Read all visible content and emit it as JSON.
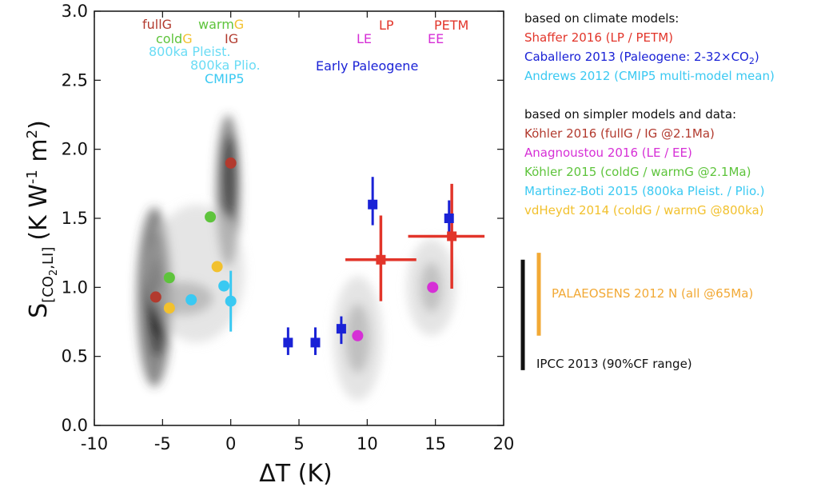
{
  "chart_data": {
    "type": "scatter",
    "xlabel": "ΔT (K)",
    "ylabel": {
      "base": "S",
      "sub_before": "[CO",
      "sub_num": "2",
      "sub_after": ",LI]",
      "units_open": "(K W",
      "exp1": "-1",
      "units_mid": " m",
      "exp2": "2",
      "units_close": ")"
    },
    "xlim": [
      -10,
      20
    ],
    "ylim": [
      0.0,
      3.0
    ],
    "xticks": [
      "-10",
      "-5",
      "0",
      "5",
      "10",
      "15",
      "20"
    ],
    "yticks": [
      "0.0",
      "0.5",
      "1.0",
      "1.5",
      "2.0",
      "2.5",
      "3.0"
    ],
    "grid": false,
    "colors": {
      "red": "#e2352a",
      "blue": "#1a22d6",
      "cyan": "#3ac9f2",
      "brown": "#b23a2e",
      "magenta": "#d62fd6",
      "green": "#5ec43c",
      "yellow": "#f2c12e",
      "orange": "#f2a935",
      "black": "#111111"
    },
    "density_clusters": [
      {
        "region": "glacial",
        "levels": [
          [
            -5.6,
            0.93,
            1.3,
            0.65
          ],
          [
            -5.4,
            0.95,
            0.7,
            0.45
          ],
          [
            -5.5,
            0.93,
            0.45,
            0.28
          ],
          [
            -3.5,
            0.92,
            2.2,
            0.12
          ],
          [
            -0.2,
            1.7,
            0.9,
            0.55
          ],
          [
            -0.1,
            1.8,
            0.5,
            0.3
          ],
          [
            -2.5,
            1.1,
            3.5,
            0.5
          ]
        ]
      },
      {
        "region": "paleogene",
        "levels": [
          [
            9.3,
            0.63,
            1.8,
            0.45
          ],
          [
            9.3,
            0.63,
            0.9,
            0.25
          ],
          [
            14.7,
            1.0,
            1.8,
            0.35
          ],
          [
            14.7,
            1.0,
            0.8,
            0.18
          ]
        ]
      }
    ],
    "series": [
      {
        "name": "Shaffer 2016 (LP / PETM)",
        "color": "red",
        "points": [
          {
            "x": 11.0,
            "y": 1.2,
            "xerr": [
              8.4,
              13.6
            ],
            "yerr": [
              0.9,
              1.52
            ]
          },
          {
            "x": 16.2,
            "y": 1.37,
            "xerr": [
              13.0,
              18.6
            ],
            "yerr": [
              0.99,
              1.75
            ]
          }
        ]
      },
      {
        "name": "Caballero 2013 (Paleogene: 2-32×CO2)",
        "color": "blue",
        "points": [
          {
            "x": 4.2,
            "y": 0.6,
            "yerr": [
              0.51,
              0.71
            ]
          },
          {
            "x": 6.2,
            "y": 0.6,
            "yerr": [
              0.51,
              0.71
            ]
          },
          {
            "x": 8.1,
            "y": 0.7,
            "yerr": [
              0.59,
              0.79
            ]
          },
          {
            "x": 10.4,
            "y": 1.6,
            "yerr": [
              1.45,
              1.8
            ]
          },
          {
            "x": 16.0,
            "y": 1.5,
            "yerr": [
              1.39,
              1.63
            ]
          }
        ]
      },
      {
        "name": "Andrews 2012 (CMIP5 multi-model mean)",
        "color": "cyan",
        "points": [
          {
            "x": 0.0,
            "y": 0.9,
            "yerr": [
              0.68,
              1.12
            ]
          }
        ]
      },
      {
        "name": "Köhler 2016 (fullG / IG @2.1Ma)",
        "color": "brown",
        "points": [
          {
            "x": -5.5,
            "y": 0.93
          },
          {
            "x": 0.0,
            "y": 1.9
          }
        ]
      },
      {
        "name": "Anagnoustou 2016 (LE / EE)",
        "color": "magenta",
        "points": [
          {
            "x": 9.3,
            "y": 0.65
          },
          {
            "x": 14.8,
            "y": 1.0
          }
        ]
      },
      {
        "name": "Köhler 2015 (coldG / warmG @2.1Ma)",
        "color": "green",
        "points": [
          {
            "x": -4.5,
            "y": 1.07
          },
          {
            "x": -1.5,
            "y": 1.51
          }
        ]
      },
      {
        "name": "Martinez-Boti 2015 (800ka Pleist. / Plio.)",
        "color": "cyan",
        "points": [
          {
            "x": -2.9,
            "y": 0.91
          },
          {
            "x": -0.5,
            "y": 1.01
          }
        ]
      },
      {
        "name": "vdHeydt 2014 (coldG / warmG @800ka)",
        "color": "yellow",
        "points": [
          {
            "x": -4.5,
            "y": 0.85
          },
          {
            "x": -1.0,
            "y": 1.15
          }
        ]
      }
    ],
    "annotations": {
      "fullG": "fullG",
      "warm": "warm",
      "G1": "G",
      "cold": "cold",
      "G2": "G",
      "IG": "IG",
      "pleist": "800ka Pleist.",
      "plio": "800ka Plio.",
      "cmip5": "CMIP5",
      "early_paleogene": "Early Paleogene",
      "LP": "LP",
      "LE": "LE",
      "PETM": "PETM",
      "EE": "EE"
    },
    "legend": {
      "heading1": "based on climate models:",
      "heading2": "based on simpler models and data:",
      "entries": [
        {
          "label": "Shaffer 2016 (LP / PETM)",
          "color": "red"
        },
        {
          "label_pre": "Caballero 2013 (Paleogene: 2-32×CO",
          "label_sub": "2",
          "label_post": ")",
          "color": "blue"
        },
        {
          "label": "Andrews 2012 (CMIP5 multi-model mean)",
          "color": "cyan"
        },
        {
          "label": "Köhler 2016 (fullG / IG @2.1Ma)",
          "color": "brown"
        },
        {
          "label": "Anagnoustou 2016 (LE / EE)",
          "color": "magenta"
        },
        {
          "label": "Köhler 2015 (coldG / warmG @2.1Ma)",
          "color": "green"
        },
        {
          "label": "Martinez-Boti 2015 (800ka Pleist. / Plio.)",
          "color": "cyan"
        },
        {
          "label": "vdHeydt 2014 (coldG / warmG @800ka)",
          "color": "yellow"
        }
      ]
    },
    "ranges": [
      {
        "name": "IPCC 2013 (90%CF range)",
        "color": "black",
        "ymin": 0.4,
        "ymax": 1.2
      },
      {
        "name": "PALAEOSENS 2012 N (all @65Ma)",
        "color": "orange",
        "ymin": 0.65,
        "ymax": 1.25
      }
    ]
  }
}
